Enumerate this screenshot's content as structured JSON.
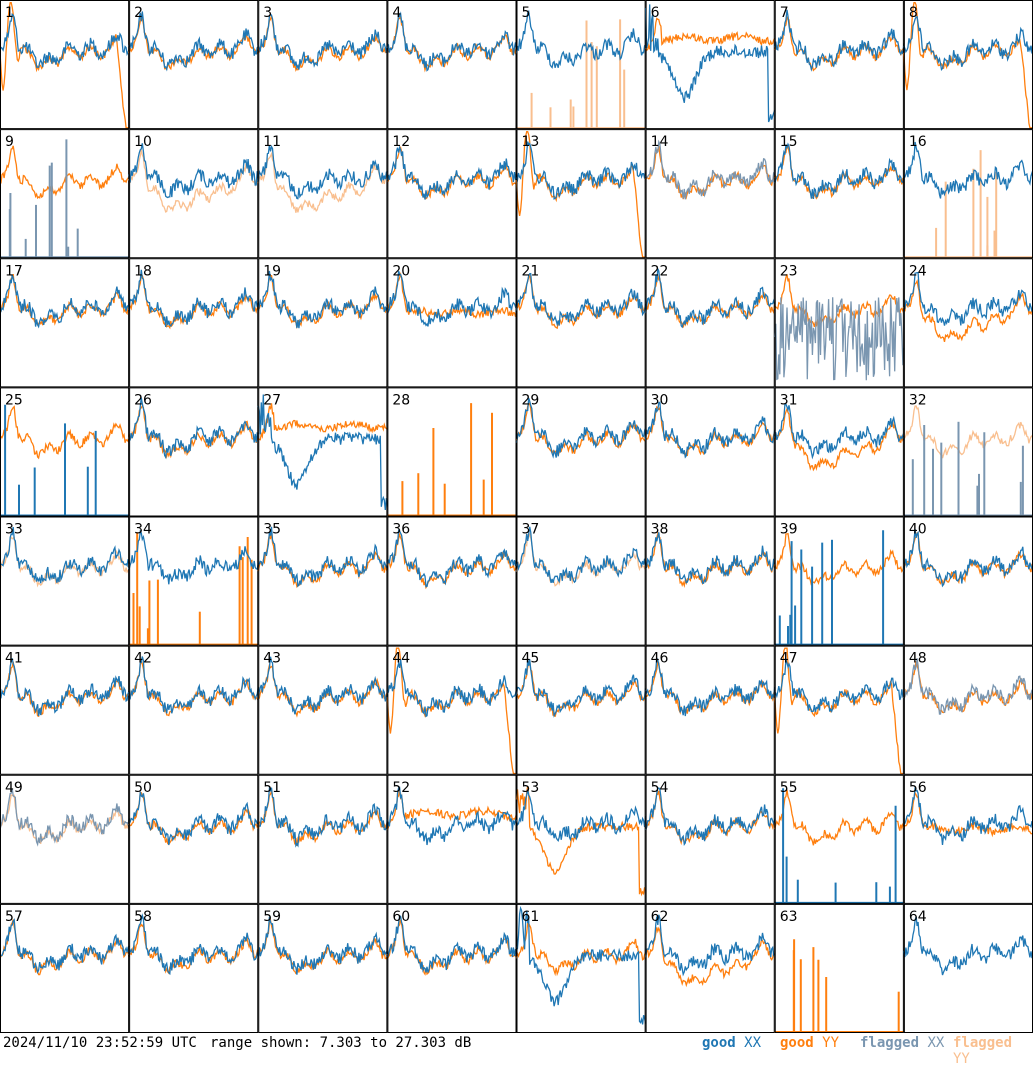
{
  "timestamp": "2024/11/10 23:52:59 UTC",
  "range_text": "range shown: 7.303 to 27.303 dB",
  "legend": {
    "good_xx": {
      "word": "good",
      "pol": "XX"
    },
    "good_yy": {
      "word": "good",
      "pol": "YY"
    },
    "flagged_xx": {
      "word": "flagged",
      "pol": "XX"
    },
    "flagged_yy": {
      "word": "flagged",
      "pol": "YY"
    }
  },
  "colors": {
    "good_xx": "#1f77b4",
    "good_yy": "#ff7f0e",
    "flagged_xx": "#7a96b0",
    "flagged_yy": "#f9bf8f",
    "grid": "#000000"
  },
  "chart_data": {
    "type": "line",
    "layout": "8x8 small multiples",
    "ylim_db": [
      7.303,
      27.303
    ],
    "panels": [
      {
        "id": "1",
        "xx": "good",
        "yy": "good",
        "yy_style": "drop_end"
      },
      {
        "id": "2",
        "xx": "good",
        "yy": "good",
        "yy_style": "normal"
      },
      {
        "id": "3",
        "xx": "good",
        "yy": "good",
        "yy_style": "normal"
      },
      {
        "id": "4",
        "xx": "good",
        "yy": "good",
        "yy_style": "normal"
      },
      {
        "id": "5",
        "xx": "good",
        "yy": "flagged",
        "yy_style": "spikes"
      },
      {
        "id": "6",
        "xx": "good",
        "yy": "good",
        "yy_style": "flat_high",
        "xx_style": "dip"
      },
      {
        "id": "7",
        "xx": "good",
        "yy": "good",
        "yy_style": "normal"
      },
      {
        "id": "8",
        "xx": "good",
        "yy": "good",
        "yy_style": "drop_end"
      },
      {
        "id": "9",
        "xx": "flagged",
        "yy": "good",
        "xx_style": "spikes",
        "yy_style": "normal"
      },
      {
        "id": "10",
        "xx": "good",
        "yy": "flagged",
        "yy_style": "low"
      },
      {
        "id": "11",
        "xx": "good",
        "yy": "flagged",
        "yy_style": "low"
      },
      {
        "id": "12",
        "xx": "good",
        "yy": "good",
        "yy_style": "normal"
      },
      {
        "id": "13",
        "xx": "good",
        "yy": "good",
        "yy_style": "drop_end"
      },
      {
        "id": "14",
        "xx": "flagged",
        "yy": "good",
        "yy_style": "normal"
      },
      {
        "id": "15",
        "xx": "good",
        "yy": "good",
        "yy_style": "normal"
      },
      {
        "id": "16",
        "xx": "good",
        "yy": "flagged",
        "yy_style": "spikes"
      },
      {
        "id": "17",
        "xx": "good",
        "yy": "good",
        "yy_style": "normal"
      },
      {
        "id": "18",
        "xx": "good",
        "yy": "good",
        "yy_style": "normal"
      },
      {
        "id": "19",
        "xx": "good",
        "yy": "good",
        "yy_style": "normal"
      },
      {
        "id": "20",
        "xx": "good",
        "yy": "good",
        "yy_style": "flat"
      },
      {
        "id": "21",
        "xx": "good",
        "yy": "good",
        "yy_style": "normal"
      },
      {
        "id": "22",
        "xx": "good",
        "yy": "good",
        "yy_style": "normal"
      },
      {
        "id": "23",
        "xx": "flagged",
        "yy": "good",
        "xx_style": "noisy",
        "yy_style": "normal"
      },
      {
        "id": "24",
        "xx": "good",
        "yy": "good",
        "yy_style": "low"
      },
      {
        "id": "25",
        "xx": "good",
        "yy": "good",
        "xx_style": "spikes",
        "yy_style": "normal"
      },
      {
        "id": "26",
        "xx": "good",
        "yy": "good",
        "yy_style": "normal"
      },
      {
        "id": "27",
        "xx": "good",
        "yy": "good",
        "xx_style": "dip",
        "yy_style": "flat_high"
      },
      {
        "id": "28",
        "xx": "none",
        "yy": "good",
        "yy_style": "spikes"
      },
      {
        "id": "29",
        "xx": "good",
        "yy": "good",
        "yy_style": "normal"
      },
      {
        "id": "30",
        "xx": "good",
        "yy": "good",
        "yy_style": "normal"
      },
      {
        "id": "31",
        "xx": "good",
        "yy": "good",
        "yy_style": "low"
      },
      {
        "id": "32",
        "xx": "flagged",
        "yy": "flagged",
        "xx_style": "spikes",
        "yy_style": "normal"
      },
      {
        "id": "33",
        "xx": "good",
        "yy": "flagged",
        "yy_style": "normal"
      },
      {
        "id": "34",
        "xx": "good",
        "yy": "good",
        "yy_style": "spikes"
      },
      {
        "id": "35",
        "xx": "good",
        "yy": "good",
        "yy_style": "normal"
      },
      {
        "id": "36",
        "xx": "good",
        "yy": "good",
        "yy_style": "normal"
      },
      {
        "id": "37",
        "xx": "good",
        "yy": "flagged",
        "yy_style": "normal"
      },
      {
        "id": "38",
        "xx": "good",
        "yy": "good",
        "yy_style": "normal"
      },
      {
        "id": "39",
        "xx": "good",
        "yy": "good",
        "xx_style": "spikes",
        "yy_style": "normal"
      },
      {
        "id": "40",
        "xx": "good",
        "yy": "good",
        "yy_style": "normal"
      },
      {
        "id": "41",
        "xx": "good",
        "yy": "good",
        "yy_style": "normal"
      },
      {
        "id": "42",
        "xx": "good",
        "yy": "good",
        "yy_style": "normal"
      },
      {
        "id": "43",
        "xx": "good",
        "yy": "good",
        "yy_style": "normal"
      },
      {
        "id": "44",
        "xx": "good",
        "yy": "good",
        "yy_style": "drop_end"
      },
      {
        "id": "45",
        "xx": "good",
        "yy": "good",
        "yy_style": "normal"
      },
      {
        "id": "46",
        "xx": "good",
        "yy": "good",
        "yy_style": "normal"
      },
      {
        "id": "47",
        "xx": "good",
        "yy": "good",
        "yy_style": "drop_end"
      },
      {
        "id": "48",
        "xx": "flagged",
        "yy": "good",
        "yy_style": "normal"
      },
      {
        "id": "49",
        "xx": "flagged",
        "yy": "flagged",
        "yy_style": "normal"
      },
      {
        "id": "50",
        "xx": "good",
        "yy": "good",
        "yy_style": "normal"
      },
      {
        "id": "51",
        "xx": "good",
        "yy": "good",
        "yy_style": "normal"
      },
      {
        "id": "52",
        "xx": "good",
        "yy": "good",
        "yy_style": "flat_high"
      },
      {
        "id": "53",
        "xx": "good",
        "yy": "good",
        "yy_style": "dip"
      },
      {
        "id": "54",
        "xx": "good",
        "yy": "good",
        "yy_style": "normal"
      },
      {
        "id": "55",
        "xx": "good",
        "yy": "good",
        "xx_style": "spikes",
        "yy_style": "normal"
      },
      {
        "id": "56",
        "xx": "good",
        "yy": "good",
        "yy_style": "flat"
      },
      {
        "id": "57",
        "xx": "good",
        "yy": "good",
        "yy_style": "normal"
      },
      {
        "id": "58",
        "xx": "good",
        "yy": "good",
        "yy_style": "normal"
      },
      {
        "id": "59",
        "xx": "good",
        "yy": "good",
        "yy_style": "normal"
      },
      {
        "id": "60",
        "xx": "good",
        "yy": "good",
        "yy_style": "normal"
      },
      {
        "id": "61",
        "xx": "good",
        "yy": "good",
        "xx_style": "dip",
        "yy_style": "normal"
      },
      {
        "id": "62",
        "xx": "good",
        "yy": "good",
        "yy_style": "low"
      },
      {
        "id": "63",
        "xx": "none",
        "yy": "good",
        "yy_style": "spikes"
      },
      {
        "id": "64",
        "xx": "good",
        "yy": "none"
      }
    ]
  }
}
